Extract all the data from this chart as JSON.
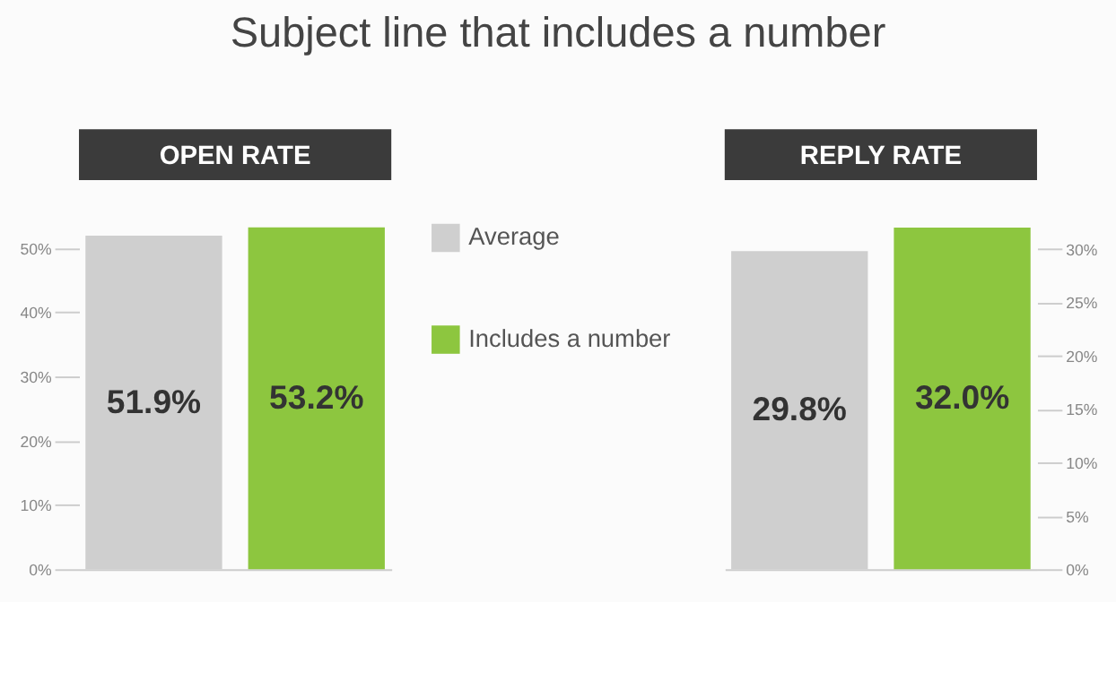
{
  "chart_data": [
    {
      "type": "bar",
      "title": "OPEN RATE",
      "annotations": [
        "Subject line that includes a number"
      ],
      "categories": [
        null
      ],
      "series": [
        {
          "name": "Average",
          "color": "#cfcfcf",
          "values": [
            51.9
          ],
          "value_labels": [
            "51.9%"
          ]
        },
        {
          "name": "Includes a number",
          "color": "#8dc63f",
          "values": [
            53.2
          ],
          "value_labels": [
            "53.2%"
          ]
        }
      ],
      "ylim": [
        0,
        54
      ],
      "yticks": [
        {
          "value": 0,
          "label": "0%"
        },
        {
          "value": 10,
          "label": "10%"
        },
        {
          "value": 20,
          "label": "20%"
        },
        {
          "value": 30,
          "label": "30%"
        },
        {
          "value": 40,
          "label": "40%"
        },
        {
          "value": 50,
          "label": "50%"
        }
      ],
      "tick_labels": "y",
      "grid": false,
      "legend": "right"
    },
    {
      "type": "bar",
      "title": "REPLY RATE",
      "categories": [
        null
      ],
      "series": [
        {
          "color": "#cfcfcf",
          "values": [
            29.8
          ],
          "value_labels": [
            "29.8%"
          ]
        },
        {
          "color": "#8dc63f",
          "values": [
            32.0
          ],
          "value_labels": [
            "32.0%"
          ]
        }
      ],
      "ylim": [
        0,
        32.5
      ],
      "yticks": [
        {
          "value": 0,
          "label": "0%"
        },
        {
          "value": 5,
          "label": "5%"
        },
        {
          "value": 10,
          "label": "10%"
        },
        {
          "value": 15,
          "label": "15%"
        },
        {
          "value": 20,
          "label": "20%"
        },
        {
          "value": 25,
          "label": "25%"
        },
        {
          "value": 30,
          "label": "30%"
        }
      ],
      "tick_labels": "y",
      "grid": false
    }
  ]
}
